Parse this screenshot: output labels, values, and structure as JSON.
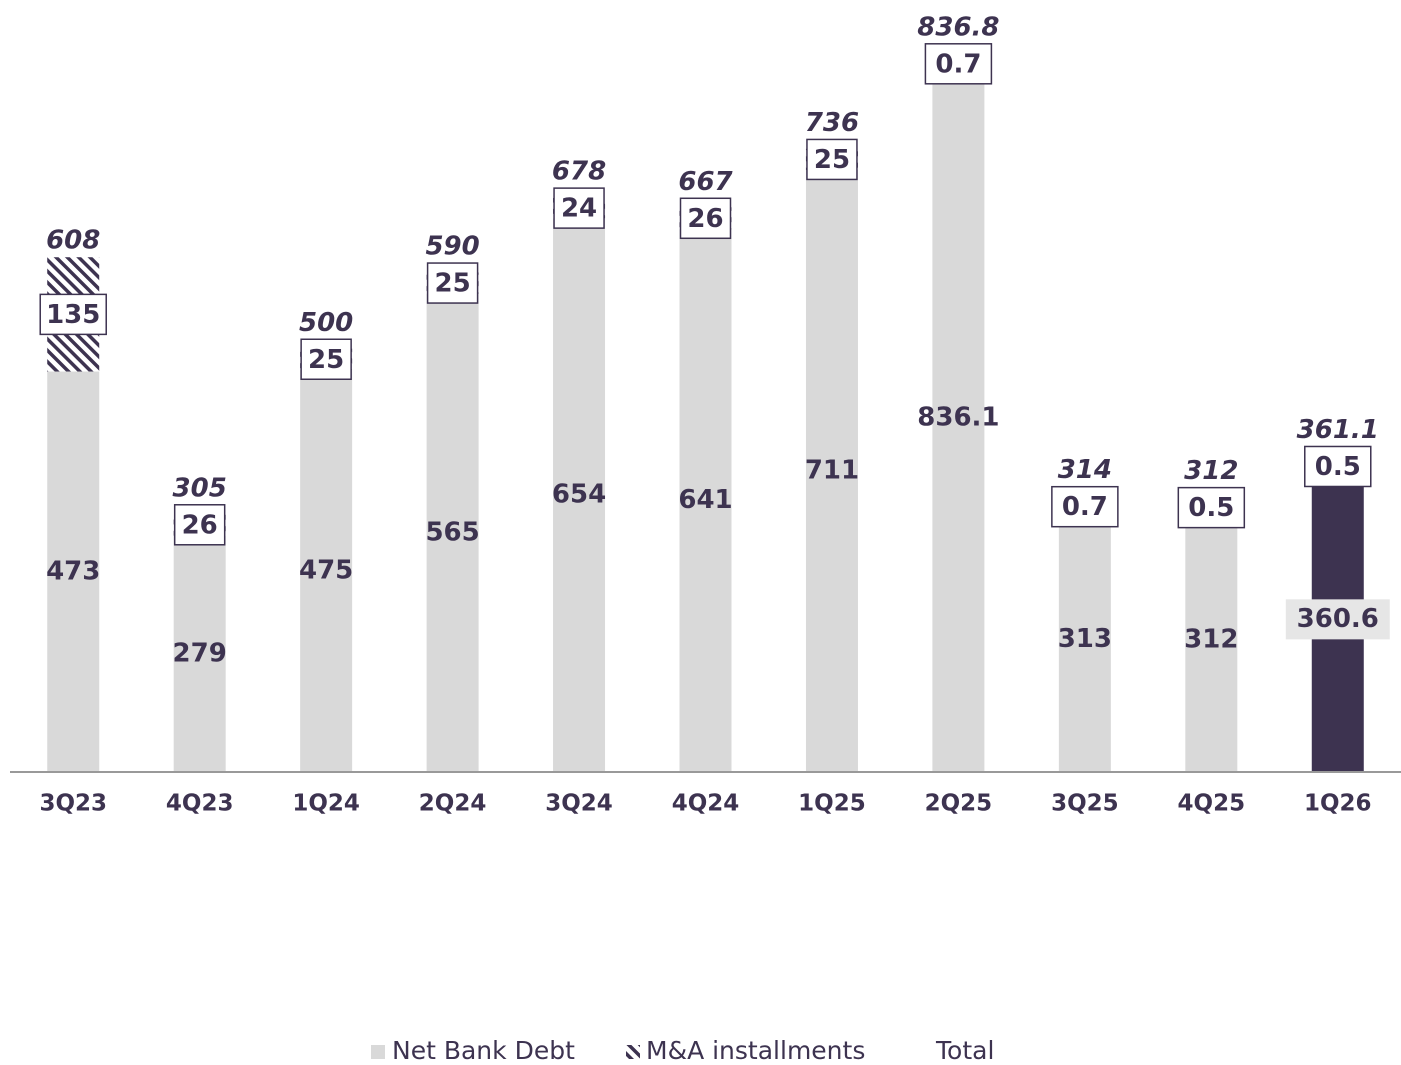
{
  "chart_data": {
    "type": "stacked_bar",
    "categories": [
      "3Q23",
      "4Q23",
      "1Q24",
      "2Q24",
      "3Q24",
      "4Q24",
      "1Q25",
      "2Q25",
      "3Q25",
      "4Q25",
      "1Q26"
    ],
    "series": [
      {
        "name": "Net Bank Debt",
        "color": "#d9d9d9",
        "colors": [
          "#d9d9d9",
          "#d9d9d9",
          "#d9d9d9",
          "#d9d9d9",
          "#d9d9d9",
          "#d9d9d9",
          "#d9d9d9",
          "#d9d9d9",
          "#d9d9d9",
          "#d9d9d9",
          "#3d3350"
        ],
        "values": [
          473,
          279,
          475,
          565,
          654,
          641,
          711,
          836.1,
          313,
          312,
          360.6
        ]
      },
      {
        "name": "M&A installments",
        "color": "#3d3350",
        "pattern": "hatch",
        "values": [
          135,
          26,
          25,
          25,
          24,
          26,
          25,
          0.7,
          0.7,
          0.5,
          0.5
        ]
      },
      {
        "name": "Total",
        "values": [
          608,
          305,
          500,
          590,
          678,
          667,
          736,
          836.8,
          314,
          312,
          361.1
        ]
      }
    ],
    "ylim": [
      0,
      900
    ],
    "legend": "bottom"
  }
}
